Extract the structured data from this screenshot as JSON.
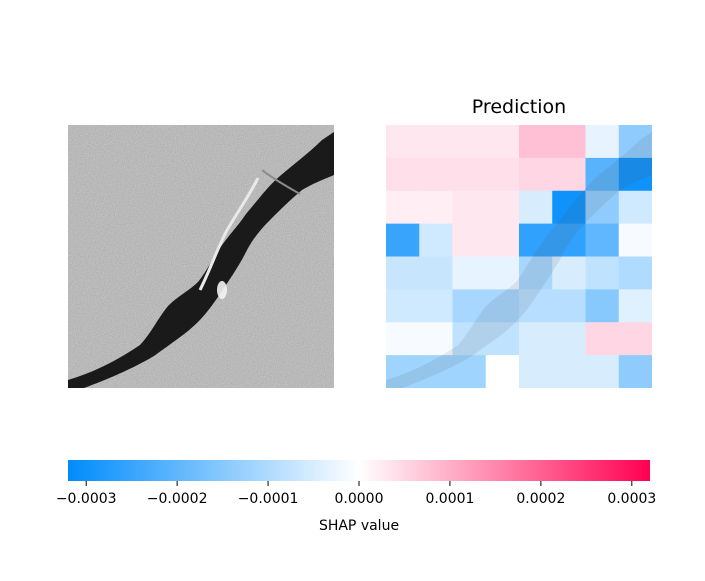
{
  "chart_data": {
    "type": "heatmap",
    "panels": [
      {
        "name": "input-image",
        "title": ""
      },
      {
        "name": "shap-heatmap",
        "title": "Prediction"
      }
    ],
    "grid": {
      "rows": 8,
      "cols": 8
    },
    "shap_values": [
      [
        3e-05,
        3e-05,
        3e-05,
        3e-05,
        8e-05,
        8e-05,
        -3e-05,
        -0.00014
      ],
      [
        4e-05,
        4e-05,
        4e-05,
        4e-05,
        5e-05,
        5e-05,
        -0.00021,
        -0.0003
      ],
      [
        2e-05,
        2e-05,
        3e-05,
        3e-05,
        -5e-05,
        -0.0003,
        -0.00014,
        -6e-05
      ],
      [
        -0.00025,
        -6e-05,
        3e-05,
        3e-05,
        -0.00026,
        -0.00026,
        -0.0002,
        -1e-05
      ],
      [
        -7e-05,
        -7e-05,
        -3e-05,
        -3e-05,
        -0.00011,
        -5e-05,
        -8e-05,
        -0.0001
      ],
      [
        -6e-05,
        -6e-05,
        -0.00011,
        -0.00011,
        -9e-05,
        -9e-05,
        -0.00015,
        -4e-05
      ],
      [
        -1e-05,
        -1e-05,
        -8e-05,
        -8e-05,
        -5e-05,
        -5e-05,
        5e-05,
        5e-05
      ],
      [
        -0.00012,
        -0.00012,
        -0.00012,
        -0.0,
        -5e-05,
        -5e-05,
        -5e-05,
        -0.00014
      ]
    ],
    "colorbar": {
      "label": "SHAP value",
      "vmin": -0.00032,
      "vmax": 0.00032,
      "ticks": [
        -0.0003,
        -0.0002,
        -0.0001,
        0.0,
        0.0001,
        0.0002,
        0.0003
      ],
      "tick_labels": [
        "−0.0003",
        "−0.0002",
        "−0.0001",
        "0.0000",
        "0.0001",
        "0.0002",
        "0.0003"
      ],
      "colors": {
        "negative": "#008bfb",
        "zero": "#ffffff",
        "positive": "#ff0051"
      }
    }
  }
}
